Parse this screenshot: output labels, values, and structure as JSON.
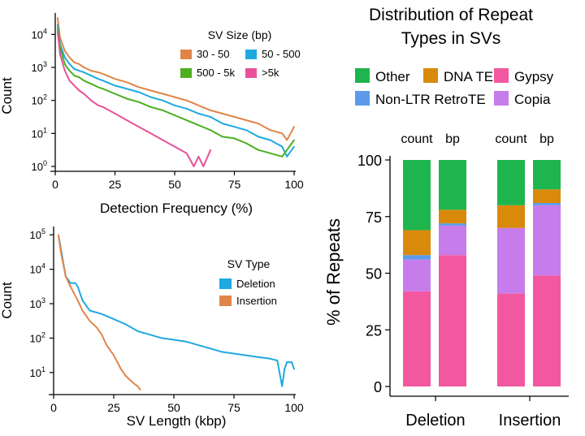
{
  "chart_data": [
    {
      "id": "detection_frequency",
      "type": "line",
      "xlabel": "Detection Frequency (%)",
      "ylabel": "Count",
      "xlim": [
        0,
        100
      ],
      "ylim_log10": [
        0,
        4.5
      ],
      "y_scale": "log",
      "x_ticks": [
        "0",
        "25",
        "50",
        "75",
        "100"
      ],
      "y_tick_exponents": [
        "4",
        "3",
        "2",
        "1",
        "0"
      ],
      "y_tick_values": [
        4,
        3,
        2,
        1,
        0
      ],
      "legend_title": "SV Size (bp)",
      "legend_placement": "top-right",
      "series": [
        {
          "name": "30 - 50",
          "color": "#E0854A",
          "x": [
            1,
            2,
            4,
            6,
            8,
            10,
            12,
            15,
            18,
            20,
            25,
            30,
            35,
            40,
            45,
            50,
            55,
            60,
            65,
            70,
            75,
            80,
            85,
            90,
            95,
            97,
            100
          ],
          "y_log10": [
            4.5,
            3.9,
            3.5,
            3.3,
            3.15,
            3.1,
            3.0,
            2.9,
            2.85,
            2.8,
            2.65,
            2.55,
            2.4,
            2.3,
            2.2,
            2.1,
            2.0,
            1.85,
            1.7,
            1.6,
            1.5,
            1.4,
            1.3,
            1.1,
            1.0,
            0.8,
            1.2
          ]
        },
        {
          "name": "50 - 500",
          "color": "#1FA9E1",
          "x": [
            1,
            2,
            4,
            6,
            8,
            10,
            12,
            15,
            18,
            20,
            25,
            30,
            35,
            40,
            45,
            50,
            55,
            60,
            65,
            70,
            75,
            80,
            85,
            90,
            95,
            97,
            100
          ],
          "y_log10": [
            4.3,
            3.7,
            3.3,
            3.1,
            2.95,
            2.9,
            2.85,
            2.75,
            2.65,
            2.6,
            2.45,
            2.35,
            2.25,
            2.1,
            2.0,
            1.85,
            1.75,
            1.6,
            1.5,
            1.3,
            1.2,
            1.1,
            0.9,
            0.8,
            0.6,
            0.3,
            0.6
          ]
        },
        {
          "name": "500 - 5k",
          "color": "#4CAF1F",
          "x": [
            1,
            2,
            4,
            6,
            8,
            10,
            12,
            15,
            18,
            20,
            25,
            30,
            35,
            40,
            45,
            50,
            55,
            60,
            65,
            70,
            75,
            80,
            85,
            90,
            95,
            97,
            100
          ],
          "y_log10": [
            4.2,
            3.6,
            3.1,
            2.9,
            2.75,
            2.7,
            2.6,
            2.5,
            2.4,
            2.35,
            2.2,
            2.05,
            1.95,
            1.8,
            1.7,
            1.55,
            1.4,
            1.25,
            1.1,
            0.9,
            0.85,
            0.7,
            0.5,
            0.4,
            0.3,
            0.5,
            0.8
          ]
        },
        {
          "name": ">5k",
          "color": "#E8519A",
          "x": [
            1,
            2,
            4,
            6,
            8,
            10,
            12,
            15,
            18,
            20,
            25,
            30,
            35,
            40,
            45,
            50,
            55,
            58,
            60,
            62,
            65
          ],
          "y_log10": [
            4.1,
            3.4,
            2.9,
            2.6,
            2.45,
            2.3,
            2.2,
            2.0,
            1.85,
            1.8,
            1.6,
            1.4,
            1.2,
            1.0,
            0.8,
            0.6,
            0.4,
            0.0,
            0.3,
            0.0,
            0.5
          ]
        }
      ]
    },
    {
      "id": "sv_length",
      "type": "line",
      "xlabel": "SV Length (kbp)",
      "ylabel": "Count",
      "xlim": [
        0,
        100
      ],
      "ylim_log10": [
        0.5,
        5.1
      ],
      "y_scale": "log",
      "x_ticks": [
        "0",
        "25",
        "50",
        "75",
        "100"
      ],
      "y_tick_exponents": [
        "5",
        "4",
        "3",
        "2",
        "1"
      ],
      "y_tick_values": [
        5,
        4,
        3,
        2,
        1
      ],
      "legend_title": "SV Type",
      "legend_placement": "top-right",
      "series": [
        {
          "name": "Deletion",
          "color": "#1FA9E1",
          "x": [
            2,
            3,
            5,
            7,
            9,
            10,
            12,
            15,
            20,
            25,
            30,
            35,
            40,
            45,
            50,
            55,
            60,
            65,
            70,
            75,
            80,
            85,
            90,
            93,
            95,
            96,
            97,
            99,
            100
          ],
          "y_log10": [
            5.0,
            4.6,
            3.8,
            3.6,
            3.6,
            3.5,
            3.1,
            2.8,
            2.7,
            2.55,
            2.4,
            2.2,
            2.1,
            2.0,
            1.95,
            1.9,
            1.8,
            1.7,
            1.6,
            1.55,
            1.5,
            1.45,
            1.4,
            1.35,
            0.6,
            1.1,
            1.3,
            1.3,
            1.1
          ]
        },
        {
          "name": "Insertion",
          "color": "#E0854A",
          "x": [
            2,
            3,
            5,
            7,
            10,
            12,
            15,
            18,
            20,
            22,
            25,
            28,
            30,
            33,
            35,
            36
          ],
          "y_log10": [
            5.0,
            4.5,
            3.8,
            3.5,
            3.1,
            2.8,
            2.5,
            2.3,
            2.1,
            1.8,
            1.5,
            1.1,
            0.9,
            0.7,
            0.6,
            0.5
          ]
        }
      ]
    },
    {
      "id": "repeat_distribution",
      "type": "bar",
      "stacked": true,
      "title": "Distribution of Repeat Types in SVs",
      "ylabel": "% of Repeats",
      "ylim": [
        0,
        100
      ],
      "y_ticks": [
        "0",
        "25",
        "50",
        "75",
        "100"
      ],
      "y_tick_values": [
        0,
        25,
        50,
        75,
        100
      ],
      "groups": [
        "Deletion",
        "Insertion"
      ],
      "bar_labels": [
        "count",
        "bp",
        "count",
        "bp"
      ],
      "legend_placement": "top",
      "stack_order": [
        "Gypsy",
        "Copia",
        "Non-LTR RetroTE",
        "DNA TE",
        "Other"
      ],
      "legend_order": [
        "Other",
        "DNA TE",
        "Gypsy",
        "Non-LTR RetroTE",
        "Copia"
      ],
      "colors": {
        "Other": "#1FB54E",
        "DNA TE": "#D98A0B",
        "Gypsy": "#F2589F",
        "Non-LTR RetroTE": "#5B9BEA",
        "Copia": "#C77CEB"
      },
      "bars": [
        {
          "group": "Deletion",
          "label": "count",
          "values": {
            "Gypsy": 42,
            "Copia": 14,
            "Non-LTR RetroTE": 2,
            "DNA TE": 11,
            "Other": 31
          }
        },
        {
          "group": "Deletion",
          "label": "bp",
          "values": {
            "Gypsy": 58,
            "Copia": 13,
            "Non-LTR RetroTE": 1,
            "DNA TE": 6,
            "Other": 22
          }
        },
        {
          "group": "Insertion",
          "label": "count",
          "values": {
            "Gypsy": 41,
            "Copia": 29,
            "Non-LTR RetroTE": 0,
            "DNA TE": 10,
            "Other": 20
          }
        },
        {
          "group": "Insertion",
          "label": "bp",
          "values": {
            "Gypsy": 49,
            "Copia": 31,
            "Non-LTR RetroTE": 1,
            "DNA TE": 6,
            "Other": 13
          }
        }
      ]
    }
  ]
}
